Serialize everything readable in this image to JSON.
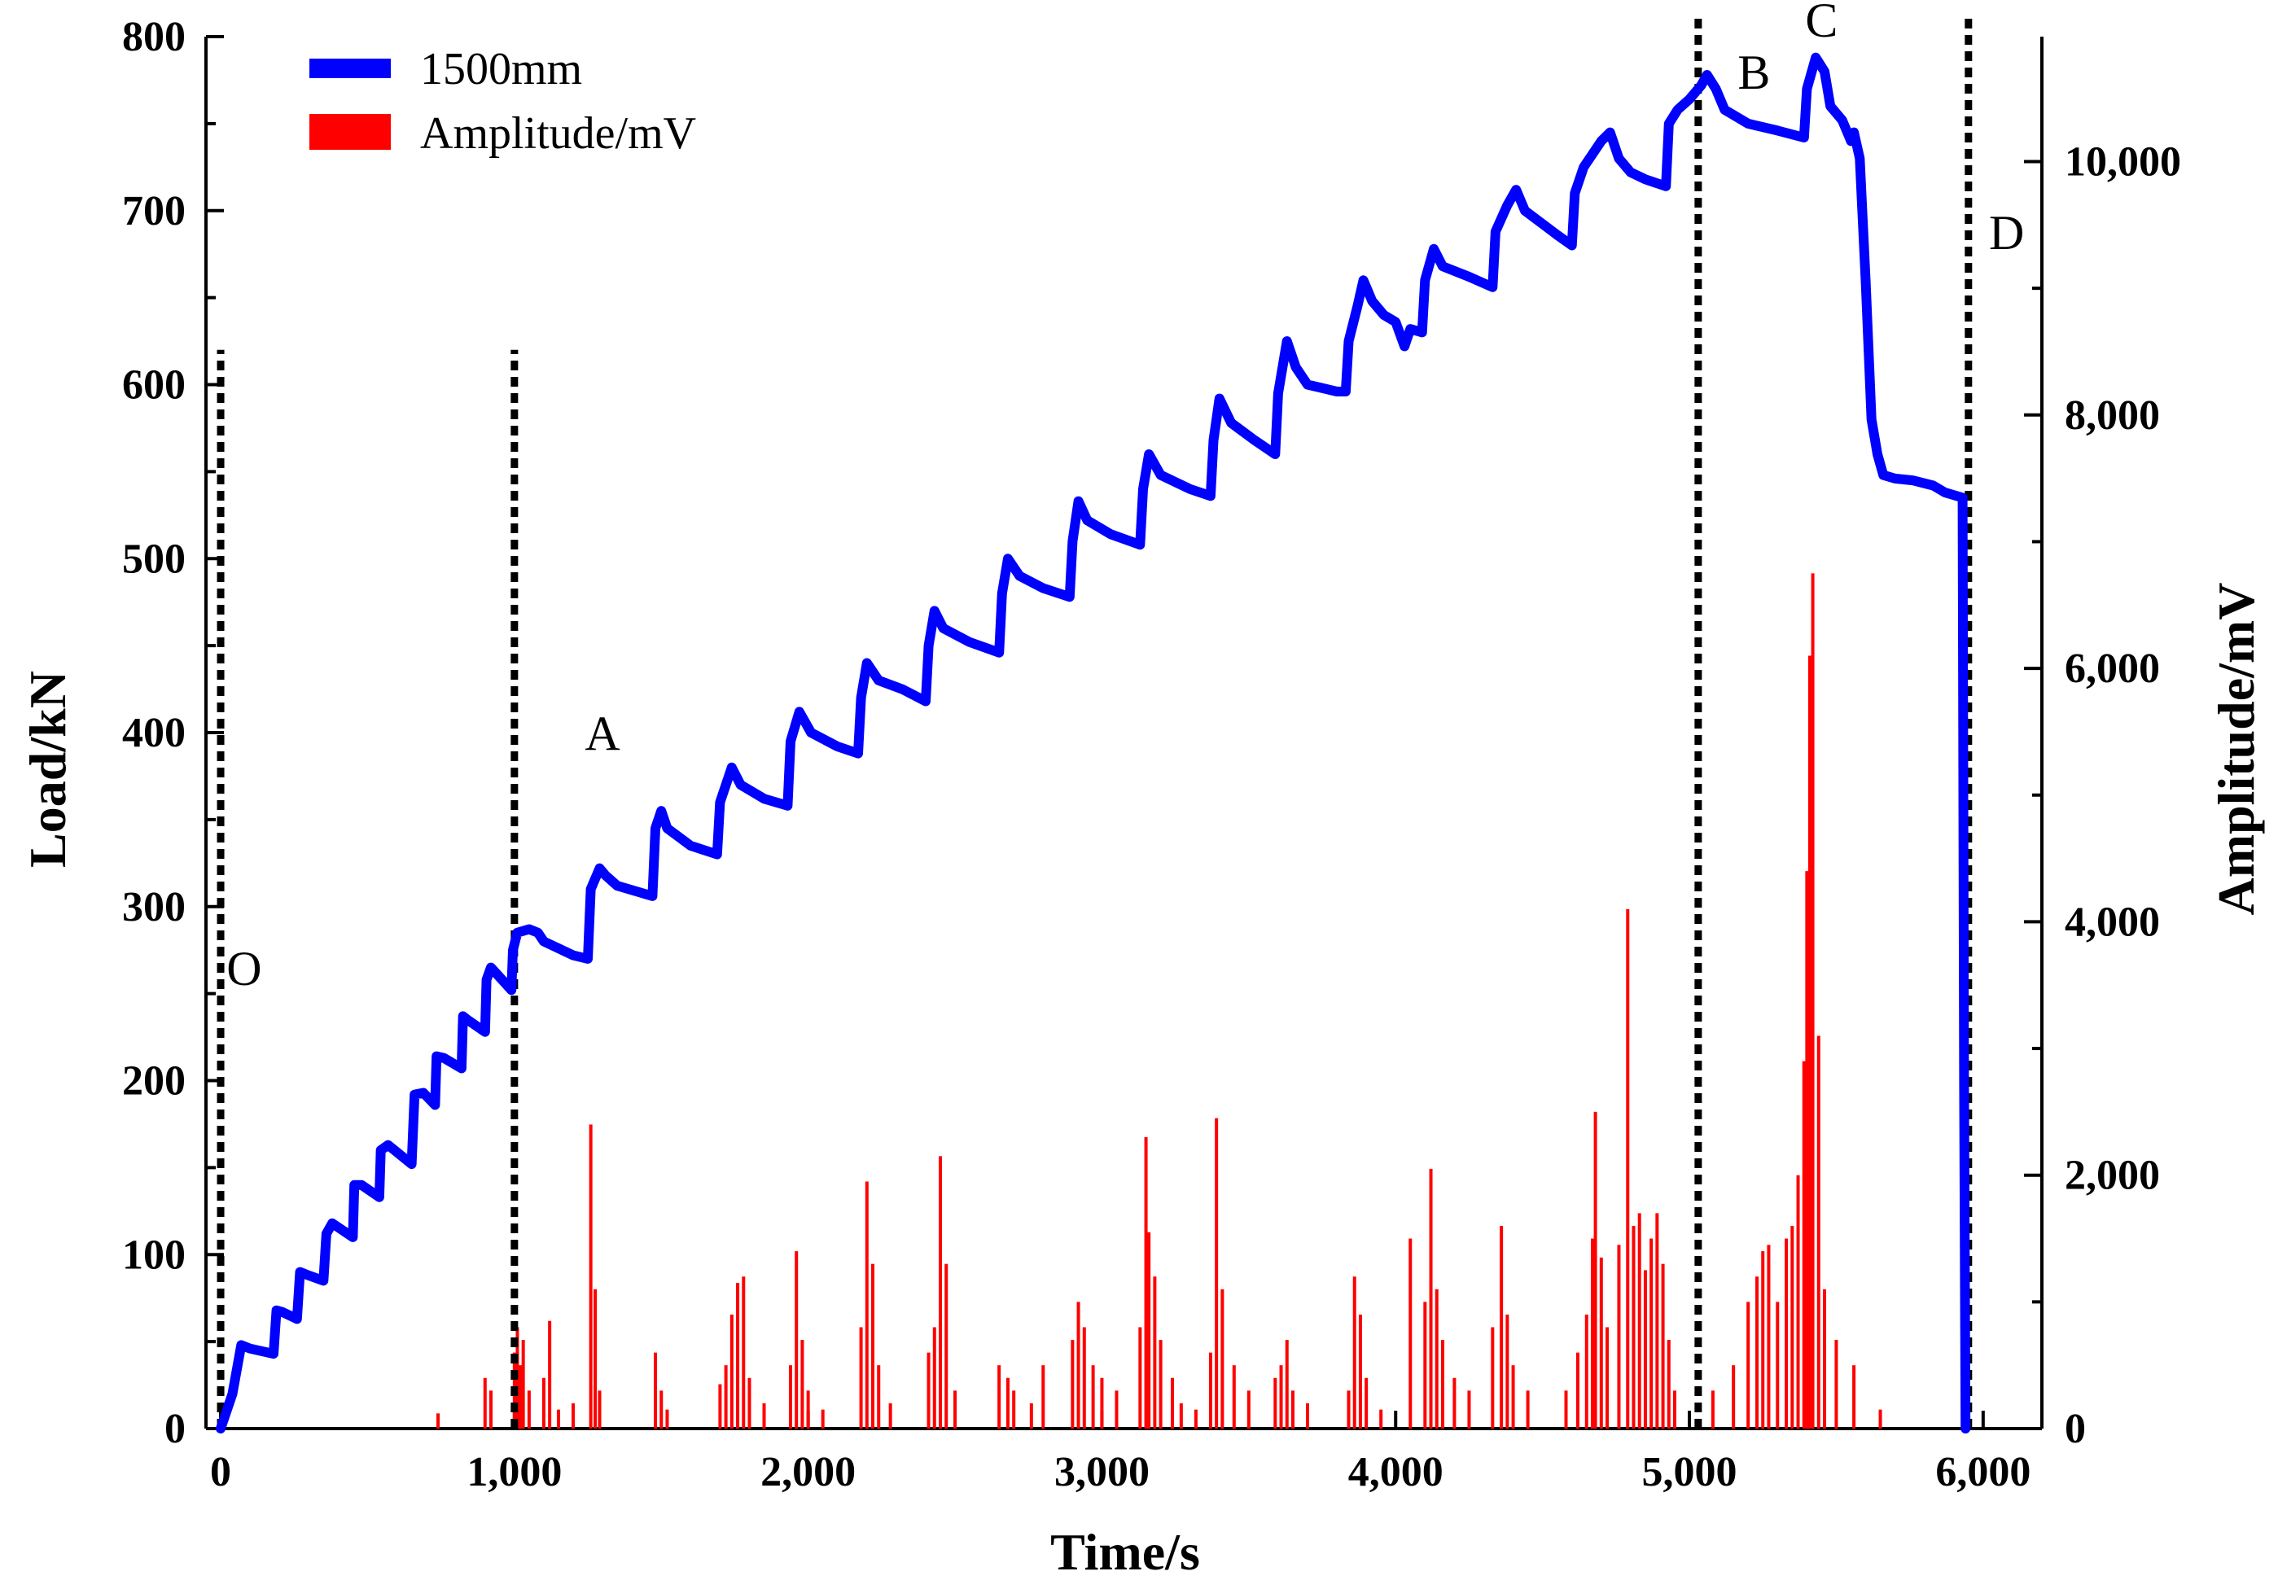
{
  "chart_data": {
    "type": "line",
    "title": "",
    "xlabel": "Time/s",
    "ylabel": "Load/kN",
    "y2label": "Amplitude/mV",
    "xlim": [
      -50,
      6200
    ],
    "ylim": [
      0,
      800
    ],
    "y2lim": [
      0,
      10986
    ],
    "x_ticks": [
      0,
      1000,
      2000,
      3000,
      4000,
      5000,
      6000
    ],
    "x_tick_labels": [
      "0",
      "1,000",
      "2,000",
      "3,000",
      "4,000",
      "5,000",
      "6,000"
    ],
    "y_ticks": [
      0,
      100,
      200,
      300,
      400,
      500,
      600,
      700,
      800
    ],
    "y_tick_labels": [
      "0",
      "100",
      "200",
      "300",
      "400",
      "500",
      "600",
      "700",
      "800"
    ],
    "y2_ticks": [
      0,
      2000,
      4000,
      6000,
      8000,
      10000
    ],
    "y2_tick_labels": [
      "0",
      "2,000",
      "4,000",
      "6,000",
      "8,000",
      "10,000"
    ],
    "legend": {
      "position": "top-left",
      "entries": [
        {
          "label": "1500mm",
          "color": "#0000ff",
          "kind": "line"
        },
        {
          "label": "Amplitude/mV",
          "color": "#ff0000",
          "kind": "bar"
        }
      ]
    },
    "series": [
      {
        "name": "1500mm",
        "axis": "left",
        "color": "#0000ff",
        "points": [
          [
            0,
            0
          ],
          [
            40,
            20
          ],
          [
            70,
            48
          ],
          [
            100,
            46
          ],
          [
            180,
            43
          ],
          [
            190,
            68
          ],
          [
            210,
            67
          ],
          [
            260,
            63
          ],
          [
            270,
            90
          ],
          [
            300,
            88
          ],
          [
            350,
            85
          ],
          [
            360,
            112
          ],
          [
            380,
            118
          ],
          [
            450,
            110
          ],
          [
            455,
            140
          ],
          [
            480,
            140
          ],
          [
            540,
            133
          ],
          [
            545,
            160
          ],
          [
            570,
            163
          ],
          [
            650,
            152
          ],
          [
            660,
            192
          ],
          [
            690,
            193
          ],
          [
            730,
            186
          ],
          [
            735,
            214
          ],
          [
            760,
            213
          ],
          [
            820,
            207
          ],
          [
            825,
            237
          ],
          [
            840,
            235
          ],
          [
            900,
            228
          ],
          [
            905,
            258
          ],
          [
            920,
            265
          ],
          [
            990,
            252
          ],
          [
            995,
            275
          ],
          [
            1010,
            285
          ],
          [
            1050,
            287
          ],
          [
            1080,
            285
          ],
          [
            1100,
            280
          ],
          [
            1200,
            272
          ],
          [
            1250,
            270
          ],
          [
            1260,
            310
          ],
          [
            1290,
            322
          ],
          [
            1310,
            318
          ],
          [
            1350,
            312
          ],
          [
            1470,
            306
          ],
          [
            1480,
            345
          ],
          [
            1500,
            355
          ],
          [
            1520,
            345
          ],
          [
            1600,
            335
          ],
          [
            1690,
            330
          ],
          [
            1700,
            360
          ],
          [
            1740,
            380
          ],
          [
            1770,
            370
          ],
          [
            1850,
            362
          ],
          [
            1930,
            358
          ],
          [
            1940,
            395
          ],
          [
            1970,
            412
          ],
          [
            2010,
            400
          ],
          [
            2100,
            392
          ],
          [
            2170,
            388
          ],
          [
            2180,
            420
          ],
          [
            2200,
            440
          ],
          [
            2240,
            430
          ],
          [
            2320,
            425
          ],
          [
            2400,
            418
          ],
          [
            2410,
            450
          ],
          [
            2430,
            470
          ],
          [
            2460,
            460
          ],
          [
            2550,
            452
          ],
          [
            2650,
            446
          ],
          [
            2660,
            480
          ],
          [
            2680,
            500
          ],
          [
            2720,
            490
          ],
          [
            2800,
            483
          ],
          [
            2890,
            478
          ],
          [
            2900,
            510
          ],
          [
            2920,
            533
          ],
          [
            2950,
            522
          ],
          [
            3030,
            514
          ],
          [
            3130,
            508
          ],
          [
            3140,
            540
          ],
          [
            3160,
            560
          ],
          [
            3200,
            548
          ],
          [
            3300,
            540
          ],
          [
            3370,
            536
          ],
          [
            3380,
            568
          ],
          [
            3400,
            592
          ],
          [
            3440,
            578
          ],
          [
            3520,
            568
          ],
          [
            3590,
            560
          ],
          [
            3600,
            595
          ],
          [
            3630,
            625
          ],
          [
            3660,
            610
          ],
          [
            3700,
            600
          ],
          [
            3800,
            596
          ],
          [
            3830,
            596
          ],
          [
            3840,
            625
          ],
          [
            3870,
            645
          ],
          [
            3890,
            660
          ],
          [
            3920,
            648
          ],
          [
            3960,
            640
          ],
          [
            4000,
            636
          ],
          [
            4030,
            622
          ],
          [
            4050,
            632
          ],
          [
            4090,
            630
          ],
          [
            4100,
            660
          ],
          [
            4130,
            678
          ],
          [
            4160,
            668
          ],
          [
            4250,
            662
          ],
          [
            4330,
            656
          ],
          [
            4340,
            688
          ],
          [
            4380,
            703
          ],
          [
            4410,
            712
          ],
          [
            4440,
            700
          ],
          [
            4550,
            686
          ],
          [
            4600,
            680
          ],
          [
            4610,
            710
          ],
          [
            4640,
            725
          ],
          [
            4700,
            740
          ],
          [
            4730,
            745
          ],
          [
            4760,
            730
          ],
          [
            4800,
            722
          ],
          [
            4850,
            718
          ],
          [
            4920,
            714
          ],
          [
            4930,
            750
          ],
          [
            4960,
            758
          ],
          [
            5000,
            764
          ],
          [
            5040,
            772
          ],
          [
            5060,
            778
          ],
          [
            5090,
            770
          ],
          [
            5120,
            758
          ],
          [
            5200,
            750
          ],
          [
            5300,
            746
          ],
          [
            5390,
            742
          ],
          [
            5400,
            770
          ],
          [
            5430,
            788
          ],
          [
            5460,
            780
          ],
          [
            5480,
            760
          ],
          [
            5520,
            752
          ],
          [
            5550,
            740
          ],
          [
            5560,
            745
          ],
          [
            5580,
            730
          ],
          [
            5600,
            660
          ],
          [
            5620,
            580
          ],
          [
            5640,
            560
          ],
          [
            5660,
            548
          ],
          [
            5700,
            546
          ],
          [
            5760,
            545
          ],
          [
            5830,
            542
          ],
          [
            5870,
            538
          ],
          [
            5930,
            535
          ],
          [
            5935,
            200
          ],
          [
            5940,
            0
          ]
        ]
      },
      {
        "name": "Amplitude/mV",
        "axis": "right",
        "color": "#ff0000",
        "type": "bar",
        "points": [
          [
            740,
            120
          ],
          [
            900,
            400
          ],
          [
            920,
            300
          ],
          [
            1000,
            600
          ],
          [
            1010,
            800
          ],
          [
            1020,
            500
          ],
          [
            1030,
            700
          ],
          [
            1050,
            300
          ],
          [
            1100,
            400
          ],
          [
            1120,
            850
          ],
          [
            1150,
            150
          ],
          [
            1200,
            200
          ],
          [
            1260,
            2400
          ],
          [
            1275,
            1100
          ],
          [
            1290,
            300
          ],
          [
            1480,
            600
          ],
          [
            1500,
            300
          ],
          [
            1520,
            150
          ],
          [
            1700,
            350
          ],
          [
            1720,
            500
          ],
          [
            1740,
            900
          ],
          [
            1760,
            1150
          ],
          [
            1780,
            1200
          ],
          [
            1800,
            400
          ],
          [
            1850,
            200
          ],
          [
            1940,
            500
          ],
          [
            1960,
            1400
          ],
          [
            1980,
            700
          ],
          [
            2000,
            300
          ],
          [
            2050,
            150
          ],
          [
            2180,
            800
          ],
          [
            2200,
            1950
          ],
          [
            2220,
            1300
          ],
          [
            2240,
            500
          ],
          [
            2280,
            200
          ],
          [
            2410,
            600
          ],
          [
            2430,
            800
          ],
          [
            2450,
            2150
          ],
          [
            2470,
            1300
          ],
          [
            2500,
            300
          ],
          [
            2650,
            500
          ],
          [
            2680,
            400
          ],
          [
            2700,
            300
          ],
          [
            2760,
            200
          ],
          [
            2800,
            500
          ],
          [
            2900,
            700
          ],
          [
            2920,
            1000
          ],
          [
            2940,
            800
          ],
          [
            2970,
            500
          ],
          [
            3000,
            400
          ],
          [
            3050,
            300
          ],
          [
            3130,
            800
          ],
          [
            3150,
            2300
          ],
          [
            3160,
            1550
          ],
          [
            3180,
            1200
          ],
          [
            3200,
            700
          ],
          [
            3240,
            400
          ],
          [
            3270,
            200
          ],
          [
            3320,
            150
          ],
          [
            3370,
            600
          ],
          [
            3390,
            2450
          ],
          [
            3410,
            1100
          ],
          [
            3450,
            500
          ],
          [
            3500,
            300
          ],
          [
            3590,
            400
          ],
          [
            3610,
            500
          ],
          [
            3630,
            700
          ],
          [
            3650,
            300
          ],
          [
            3700,
            200
          ],
          [
            3840,
            300
          ],
          [
            3860,
            1200
          ],
          [
            3880,
            900
          ],
          [
            3900,
            400
          ],
          [
            3950,
            150
          ],
          [
            4050,
            1500
          ],
          [
            4100,
            1000
          ],
          [
            4120,
            2050
          ],
          [
            4140,
            1100
          ],
          [
            4160,
            700
          ],
          [
            4200,
            400
          ],
          [
            4250,
            300
          ],
          [
            4330,
            800
          ],
          [
            4360,
            1600
          ],
          [
            4380,
            900
          ],
          [
            4400,
            500
          ],
          [
            4450,
            300
          ],
          [
            4580,
            300
          ],
          [
            4620,
            600
          ],
          [
            4650,
            900
          ],
          [
            4670,
            1500
          ],
          [
            4680,
            2500
          ],
          [
            4700,
            1350
          ],
          [
            4720,
            800
          ],
          [
            4760,
            1450
          ],
          [
            4790,
            4100
          ],
          [
            4810,
            1600
          ],
          [
            4830,
            1700
          ],
          [
            4850,
            1250
          ],
          [
            4870,
            1500
          ],
          [
            4890,
            1700
          ],
          [
            4910,
            1300
          ],
          [
            4930,
            700
          ],
          [
            4950,
            300
          ],
          [
            5080,
            300
          ],
          [
            5150,
            500
          ],
          [
            5200,
            1000
          ],
          [
            5230,
            1200
          ],
          [
            5250,
            1400
          ],
          [
            5270,
            1450
          ],
          [
            5300,
            1000
          ],
          [
            5330,
            1500
          ],
          [
            5350,
            1600
          ],
          [
            5370,
            2000
          ],
          [
            5390,
            2900
          ],
          [
            5400,
            4400
          ],
          [
            5410,
            6100
          ],
          [
            5420,
            6750
          ],
          [
            5440,
            3100
          ],
          [
            5460,
            1100
          ],
          [
            5500,
            700
          ],
          [
            5560,
            500
          ],
          [
            5650,
            150
          ]
        ]
      }
    ],
    "reference_lines": [
      {
        "x": 0,
        "y_top": 620,
        "label": "O",
        "label_at": [
          80,
          255
        ]
      },
      {
        "x": 1000,
        "y_top": 620,
        "label": "A",
        "label_at": [
          1300,
          390
        ]
      },
      {
        "x": 5030,
        "y_top": 820,
        "label": "B",
        "label_at": [
          5220,
          770
        ]
      },
      {
        "x": 5950,
        "y_top": 820,
        "label": "D",
        "label_at": [
          6080,
          678
        ]
      }
    ],
    "annotations": [
      {
        "text": "C",
        "x": 5450,
        "y": 800
      }
    ]
  }
}
